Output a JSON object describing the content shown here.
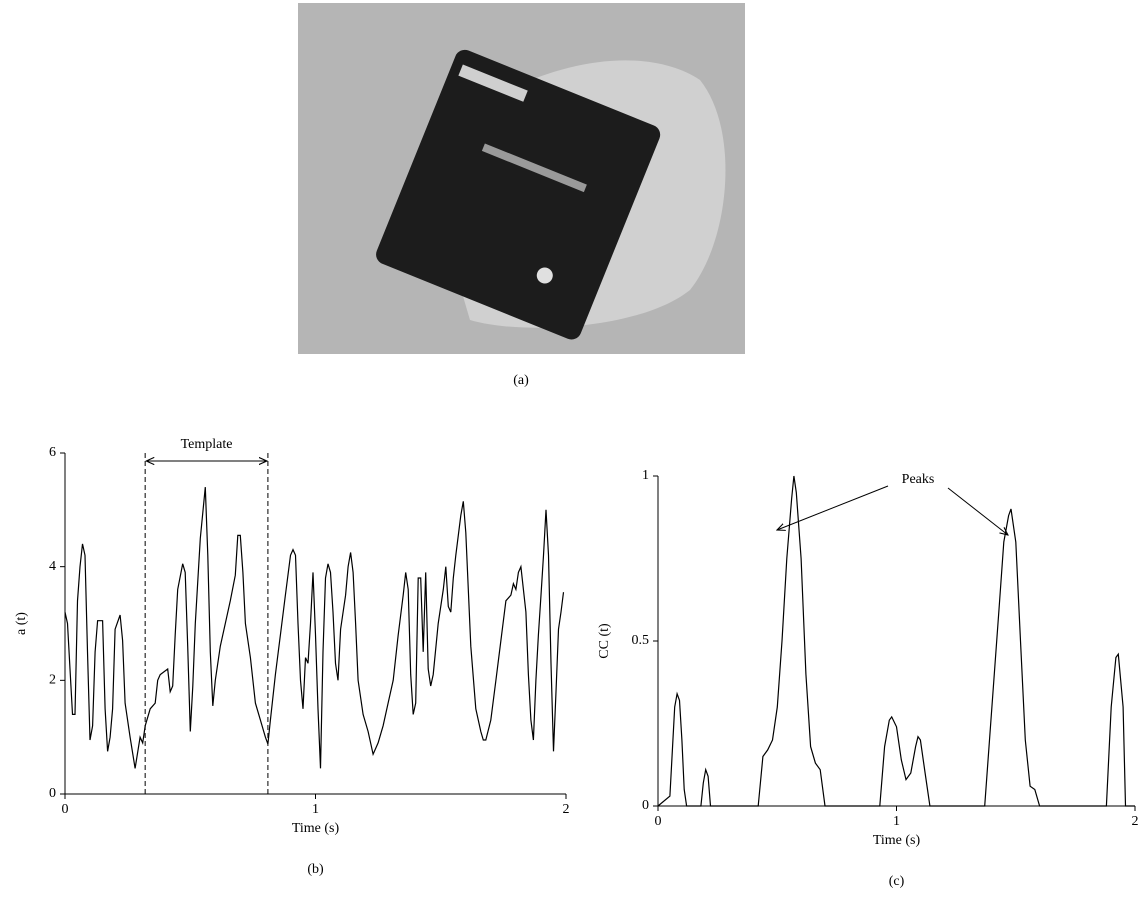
{
  "photo": {
    "caption": "(a)"
  },
  "chart_data": [
    {
      "type": "line",
      "caption": "(b)",
      "xlabel": "Time (s)",
      "ylabel": "a (t)",
      "annotation": "Template",
      "template_range": [
        0.32,
        0.81
      ],
      "xlim": [
        0,
        2
      ],
      "xticks": [
        0,
        1,
        2
      ],
      "ylim": [
        0,
        6
      ],
      "yticks": [
        0,
        2,
        4,
        6
      ],
      "series": [
        {
          "color": "#000000",
          "x": [
            0,
            0.01,
            0.02,
            0.03,
            0.04,
            0.05,
            0.06,
            0.07,
            0.08,
            0.09,
            0.1,
            0.11,
            0.12,
            0.13,
            0.15,
            0.16,
            0.17,
            0.18,
            0.19,
            0.2,
            0.22,
            0.23,
            0.24,
            0.26,
            0.28,
            0.3,
            0.31,
            0.32,
            0.34,
            0.36,
            0.37,
            0.38,
            0.41,
            0.42,
            0.43,
            0.44,
            0.45,
            0.47,
            0.48,
            0.49,
            0.5,
            0.51,
            0.52,
            0.54,
            0.56,
            0.57,
            0.58,
            0.59,
            0.6,
            0.62,
            0.64,
            0.66,
            0.68,
            0.69,
            0.7,
            0.71,
            0.72,
            0.74,
            0.76,
            0.78,
            0.8,
            0.81,
            0.82,
            0.84,
            0.86,
            0.88,
            0.9,
            0.91,
            0.92,
            0.93,
            0.94,
            0.95,
            0.96,
            0.97,
            0.98,
            0.99,
            1.0,
            1.01,
            1.02,
            1.03,
            1.04,
            1.05,
            1.06,
            1.07,
            1.08,
            1.09,
            1.1,
            1.12,
            1.13,
            1.14,
            1.15,
            1.16,
            1.17,
            1.19,
            1.21,
            1.23,
            1.25,
            1.27,
            1.29,
            1.31,
            1.33,
            1.35,
            1.36,
            1.37,
            1.38,
            1.39,
            1.4,
            1.41,
            1.42,
            1.43,
            1.44,
            1.45,
            1.46,
            1.47,
            1.49,
            1.51,
            1.52,
            1.53,
            1.54,
            1.55,
            1.56,
            1.58,
            1.59,
            1.6,
            1.62,
            1.64,
            1.66,
            1.67,
            1.68,
            1.7,
            1.72,
            1.74,
            1.76,
            1.78,
            1.79,
            1.8,
            1.81,
            1.82,
            1.83,
            1.84,
            1.85,
            1.86,
            1.87,
            1.88,
            1.89,
            1.9,
            1.91,
            1.92,
            1.93,
            1.94,
            1.95,
            1.96,
            1.97,
            1.98,
            1.99
          ],
          "values": [
            3.2,
            3.0,
            2.2,
            1.4,
            1.4,
            3.4,
            4.0,
            4.4,
            4.2,
            2.5,
            0.95,
            1.2,
            2.5,
            3.05,
            3.05,
            1.5,
            0.75,
            1.0,
            1.5,
            2.9,
            3.15,
            2.7,
            1.6,
            1.0,
            0.45,
            1.0,
            0.9,
            1.2,
            1.5,
            1.6,
            2.0,
            2.1,
            2.2,
            1.8,
            1.9,
            2.8,
            3.6,
            4.05,
            3.9,
            2.6,
            1.1,
            1.9,
            3.0,
            4.5,
            5.4,
            4.2,
            2.5,
            1.55,
            2.0,
            2.6,
            3.0,
            3.4,
            3.85,
            4.55,
            4.55,
            3.9,
            3.0,
            2.4,
            1.6,
            1.3,
            1.0,
            0.88,
            1.3,
            2.1,
            2.8,
            3.5,
            4.2,
            4.3,
            4.2,
            3.0,
            2.0,
            1.5,
            2.4,
            2.3,
            3.0,
            3.9,
            2.8,
            1.5,
            0.45,
            2.5,
            3.8,
            4.05,
            3.9,
            3.2,
            2.3,
            2.0,
            2.9,
            3.5,
            4.0,
            4.25,
            3.9,
            3.0,
            2.0,
            1.4,
            1.1,
            0.7,
            0.9,
            1.2,
            1.6,
            2.0,
            2.8,
            3.5,
            3.9,
            3.6,
            2.1,
            1.4,
            1.6,
            3.8,
            3.8,
            2.5,
            3.9,
            2.2,
            1.9,
            2.1,
            3.0,
            3.6,
            4.0,
            3.3,
            3.2,
            3.8,
            4.2,
            4.9,
            5.15,
            4.6,
            2.6,
            1.5,
            1.1,
            0.95,
            0.95,
            1.3,
            2.0,
            2.7,
            3.4,
            3.5,
            3.7,
            3.6,
            3.9,
            4.0,
            3.6,
            3.2,
            2.1,
            1.3,
            0.95,
            2.0,
            2.8,
            3.5,
            4.2,
            5.0,
            4.2,
            2.3,
            0.75,
            1.8,
            2.9,
            3.2,
            3.55
          ]
        }
      ]
    },
    {
      "type": "line",
      "caption": "(c)",
      "xlabel": "Time (s)",
      "ylabel": "CC (t)",
      "annotation": "Peaks",
      "xlim": [
        0,
        2
      ],
      "xticks": [
        0,
        1,
        2
      ],
      "ylim": [
        0,
        1
      ],
      "yticks": [
        0,
        0.5,
        1
      ],
      "series": [
        {
          "color": "#000000",
          "x": [
            0,
            0.05,
            0.07,
            0.08,
            0.09,
            0.1,
            0.11,
            0.12,
            0.18,
            0.19,
            0.2,
            0.21,
            0.22,
            0.42,
            0.44,
            0.46,
            0.48,
            0.5,
            0.52,
            0.54,
            0.56,
            0.57,
            0.58,
            0.6,
            0.62,
            0.64,
            0.66,
            0.68,
            0.7,
            0.93,
            0.95,
            0.97,
            0.98,
            1.0,
            1.02,
            1.04,
            1.06,
            1.08,
            1.09,
            1.1,
            1.12,
            1.14,
            1.37,
            1.39,
            1.41,
            1.43,
            1.45,
            1.47,
            1.48,
            1.5,
            1.52,
            1.54,
            1.56,
            1.58,
            1.6,
            1.88,
            1.9,
            1.92,
            1.93,
            1.95,
            1.96,
            2.0
          ],
          "values": [
            0,
            0.03,
            0.3,
            0.34,
            0.32,
            0.2,
            0.05,
            0,
            0,
            0.07,
            0.11,
            0.09,
            0,
            0,
            0.15,
            0.17,
            0.2,
            0.3,
            0.5,
            0.75,
            0.93,
            1.0,
            0.95,
            0.75,
            0.4,
            0.18,
            0.13,
            0.11,
            0,
            0,
            0.18,
            0.26,
            0.27,
            0.24,
            0.14,
            0.08,
            0.1,
            0.18,
            0.21,
            0.2,
            0.1,
            0,
            0,
            0.2,
            0.4,
            0.6,
            0.8,
            0.88,
            0.9,
            0.8,
            0.5,
            0.2,
            0.06,
            0.05,
            0,
            0,
            0.3,
            0.45,
            0.46,
            0.3,
            0,
            0
          ]
        }
      ]
    }
  ]
}
